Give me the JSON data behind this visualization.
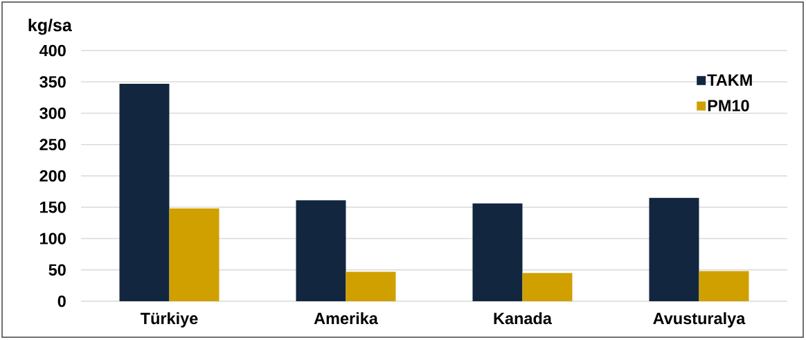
{
  "chart_data": {
    "type": "bar",
    "ylabel": "kg/sa",
    "categories": [
      "Türkiye",
      "Amerika",
      "Kanada",
      "Avusturalya"
    ],
    "series": [
      {
        "name": "TAKM",
        "color": "#13263f",
        "values": [
          347,
          161,
          156,
          165
        ]
      },
      {
        "name": "PM10",
        "color": "#d0a000",
        "values": [
          148,
          47,
          45,
          48
        ]
      }
    ],
    "ylim": [
      0,
      400
    ],
    "yticks": [
      0,
      50,
      100,
      150,
      200,
      250,
      300,
      350,
      400
    ],
    "grid": "y",
    "legend": "top right"
  }
}
